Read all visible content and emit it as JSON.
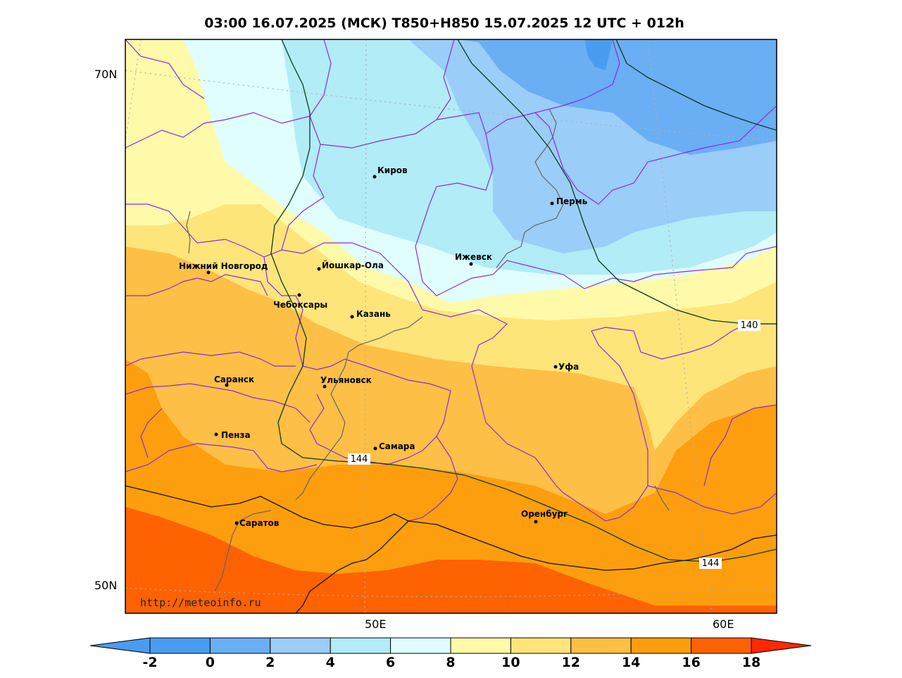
{
  "title": "03:00 16.07.2025 (МСК) T850+H850 15.07.2025 12 UTC + 012h",
  "watermark": "http://meteoinfo.ru",
  "lat_labels": [
    "70N",
    "50N"
  ],
  "lon_labels": [
    "50E",
    "60E"
  ],
  "cities": [
    {
      "name": "Киров"
    },
    {
      "name": "Пермь"
    },
    {
      "name": "Ижевск"
    },
    {
      "name": "Нижний Новгород"
    },
    {
      "name": "Йошкар-Ола"
    },
    {
      "name": "Чебоксары"
    },
    {
      "name": "Казань"
    },
    {
      "name": "Уфа"
    },
    {
      "name": "Саранск"
    },
    {
      "name": "Ульяновск"
    },
    {
      "name": "Пенза"
    },
    {
      "name": "Самара"
    },
    {
      "name": "Оренбург"
    },
    {
      "name": "Саратов"
    }
  ],
  "contour_labels": [
    "140",
    "144",
    "144"
  ],
  "colorbar": {
    "ticks": [
      "-2",
      "0",
      "2",
      "4",
      "6",
      "8",
      "10",
      "12",
      "14",
      "16",
      "18"
    ],
    "colors": [
      "#4a9cf0",
      "#6aaef4",
      "#9acdf8",
      "#b2ecf6",
      "#e0fefe",
      "#fffaaa",
      "#fee57a",
      "#fdbf45",
      "#fd9e0e",
      "#fe6201"
    ],
    "under_color": "#4a9cf0",
    "over_color": "#ff2800"
  }
}
